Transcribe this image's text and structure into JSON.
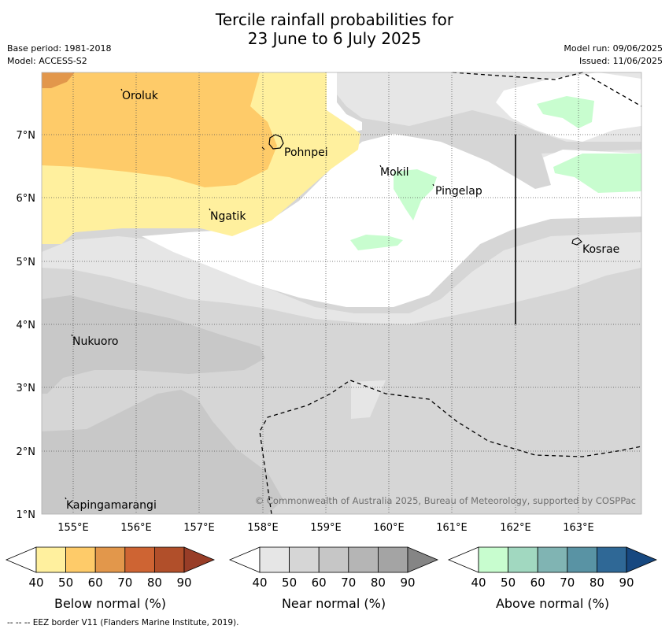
{
  "title_line1": "Tercile rainfall probabilities for",
  "title_line2": "23 June to 6 July 2025",
  "meta_left": {
    "base_period": "Base period: 1981-2018",
    "model": "Model: ACCESS-S2"
  },
  "meta_right": {
    "model_run": "Model run: 09/06/2025",
    "issued": "Issued: 11/06/2025"
  },
  "places": [
    "Oroluk",
    "Pohnpei",
    "Mokil",
    "Pingelap",
    "Ngatik",
    "Kosrae",
    "Nukuoro",
    "Kapingamarangi"
  ],
  "lat_ticks": [
    "7°N",
    "6°N",
    "5°N",
    "4°N",
    "3°N",
    "2°N",
    "1°N"
  ],
  "lon_ticks": [
    "155°E",
    "156°E",
    "157°E",
    "158°E",
    "159°E",
    "160°E",
    "161°E",
    "162°E",
    "163°E"
  ],
  "copyright": "© Commonwealth of Australia 2025, Bureau of Meteorology, supported by COSPPac",
  "colorbars": [
    {
      "label": "Below normal (%)",
      "ticks": [
        "40",
        "50",
        "60",
        "70",
        "80",
        "90"
      ],
      "colors": [
        "#ffffff",
        "#fff09e",
        "#fecb69",
        "#e2974b",
        "#ce6433",
        "#b14f2a",
        "#983d27"
      ]
    },
    {
      "label": "Near normal (%)",
      "ticks": [
        "40",
        "50",
        "60",
        "70",
        "80",
        "90"
      ],
      "colors": [
        "#ffffff",
        "#e6e6e6",
        "#d6d6d6",
        "#c6c6c6",
        "#b5b5b5",
        "#a4a4a4",
        "#858585"
      ]
    },
    {
      "label": "Above normal (%)",
      "ticks": [
        "40",
        "50",
        "60",
        "70",
        "80",
        "90"
      ],
      "colors": [
        "#ffffff",
        "#c8fdcf",
        "#a1d8c0",
        "#80b4b3",
        "#5993a4",
        "#2f6896",
        "#174880"
      ]
    }
  ],
  "footer": "--  --  -- EEZ border V11 (Flanders Marine Institute, 2019)."
}
